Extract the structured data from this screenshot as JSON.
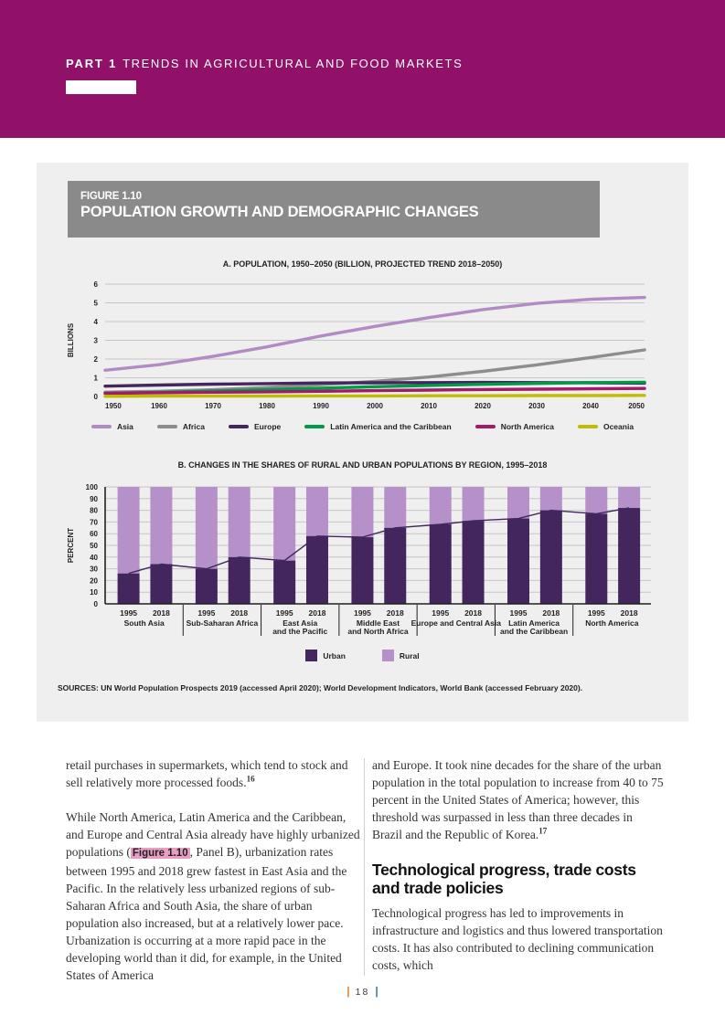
{
  "theme": {
    "band": "#921168",
    "panel": "#efeff0",
    "figure-bar": "#8a8a8a",
    "link-bg": "#e79ec2",
    "footer-orange": "#e08230",
    "footer-blue": "#3a74b8",
    "chart-text": "#231f20",
    "grid": "#c6c6c6"
  },
  "page": {
    "header": {
      "part_label": "PART 1",
      "part_title": "TRENDS IN AGRICULTURAL AND FOOD MARKETS"
    },
    "figure": {
      "label": "FIGURE 1.10",
      "title": "POPULATION GROWTH AND DEMOGRAPHIC CHANGES",
      "sources": "SOURCES: UN World Population Prospects 2019 (accessed April 2020); World Development Indicators, World Bank (accessed February 2020)."
    },
    "body": {
      "left": {
        "p1": "retail purchases in supermarkets, which tend to stock and sell relatively more processed foods.",
        "p1_footnote": "16",
        "p2_before": "While North America, Latin America and the Caribbean, and Europe and Central Asia already have highly urbanized populations (",
        "p2_link": "Figure 1.10",
        "p2_after": ", Panel B), urbanization rates between 1995 and 2018 grew fastest in East Asia and the Pacific. In the relatively less urbanized regions of sub-Saharan Africa and South Asia, the share of urban population also increased, but at a relatively lower pace. Urbanization is occurring at a more rapid pace in the developing world than it did, for example, in the United States of America"
      },
      "right": {
        "p3": "and Europe. It took nine decades for the share of the urban population in the total population to increase from 40 to 75 percent in the United States of America; however, this threshold was surpassed in less than three decades in Brazil and the Republic of Korea.",
        "p3_footnote": "17",
        "heading": "Technological progress, trade costs and trade policies",
        "p4": "Technological progress has led to improvements in infrastructure and logistics and thus lowered transportation costs. It has also contributed to declining communication costs, which"
      }
    },
    "footer": {
      "page_number": "18",
      "left_bar": "|",
      "right_bar": "|"
    }
  },
  "chart_data": [
    {
      "type": "line",
      "title": "A. POPULATION, 1950–2050 (BILLION, PROJECTED TREND 2018–2050)",
      "ylabel": "BILLIONS",
      "ylim": [
        0,
        6
      ],
      "yticks": [
        0,
        1,
        2,
        3,
        4,
        5,
        6
      ],
      "x": [
        1950,
        1960,
        1970,
        1980,
        1990,
        2000,
        2010,
        2020,
        2030,
        2040,
        2050
      ],
      "grid": true,
      "legend_position": "bottom",
      "series": [
        {
          "name": "Asia",
          "color": "#b28bc4",
          "values": [
            1.4,
            1.7,
            2.14,
            2.65,
            3.23,
            3.74,
            4.21,
            4.64,
            4.97,
            5.19,
            5.29
          ]
        },
        {
          "name": "Africa",
          "color": "#8d8d8d",
          "values": [
            0.23,
            0.28,
            0.36,
            0.48,
            0.63,
            0.81,
            1.04,
            1.34,
            1.69,
            2.08,
            2.49
          ]
        },
        {
          "name": "Europe",
          "color": "#44265e",
          "values": [
            0.55,
            0.61,
            0.66,
            0.69,
            0.72,
            0.73,
            0.74,
            0.75,
            0.74,
            0.73,
            0.71
          ]
        },
        {
          "name": "Latin America and the Caribbean",
          "color": "#009a49",
          "values": [
            0.17,
            0.22,
            0.29,
            0.36,
            0.44,
            0.52,
            0.59,
            0.65,
            0.7,
            0.74,
            0.76
          ]
        },
        {
          "name": "North America",
          "color": "#a21a68",
          "values": [
            0.17,
            0.2,
            0.23,
            0.25,
            0.28,
            0.31,
            0.34,
            0.37,
            0.39,
            0.41,
            0.43
          ]
        },
        {
          "name": "Oceania",
          "color": "#c2bc00",
          "values": [
            0.01,
            0.02,
            0.02,
            0.02,
            0.03,
            0.03,
            0.04,
            0.04,
            0.05,
            0.05,
            0.06
          ]
        }
      ]
    },
    {
      "type": "bar",
      "subtype": "stacked-100-percent",
      "title": "B. CHANGES IN THE SHARES OF RURAL AND URBAN POPULATIONS BY REGION, 1995–2018",
      "ylabel": "PERCENT",
      "ylim": [
        0,
        100
      ],
      "yticks": [
        0,
        10,
        20,
        30,
        40,
        50,
        60,
        70,
        80,
        90,
        100
      ],
      "years": [
        "1995",
        "2018"
      ],
      "legend": [
        {
          "name": "Urban",
          "color": "#44265e"
        },
        {
          "name": "Rural",
          "color": "#b691c9"
        }
      ],
      "trend_line_color": "#44265e",
      "groups": [
        {
          "label_lines": [
            "South Asia"
          ],
          "urban": [
            26,
            34
          ],
          "rural": [
            74,
            66
          ]
        },
        {
          "label_lines": [
            "Sub-Saharan Africa"
          ],
          "urban": [
            30,
            40
          ],
          "rural": [
            70,
            60
          ]
        },
        {
          "label_lines": [
            "East Asia",
            "and the Pacific"
          ],
          "urban": [
            37,
            58
          ],
          "rural": [
            63,
            42
          ]
        },
        {
          "label_lines": [
            "Middle East",
            "and North Africa"
          ],
          "urban": [
            57,
            65
          ],
          "rural": [
            43,
            35
          ]
        },
        {
          "label_lines": [
            "Europe and Central Asia"
          ],
          "urban": [
            68,
            71
          ],
          "rural": [
            32,
            29
          ]
        },
        {
          "label_lines": [
            "Latin America",
            "and the Caribbean"
          ],
          "urban": [
            73,
            80
          ],
          "rural": [
            27,
            20
          ]
        },
        {
          "label_lines": [
            "North America"
          ],
          "urban": [
            77,
            82
          ],
          "rural": [
            23,
            18
          ]
        }
      ]
    }
  ]
}
